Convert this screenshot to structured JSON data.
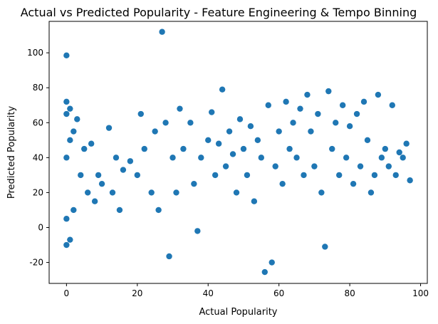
{
  "chart_data": {
    "type": "scatter",
    "title": "Actual vs Predicted Popularity - Feature Engineering & Tempo Binning",
    "xlabel": "Actual Popularity",
    "ylabel": "Predicted Popularity",
    "xlim": [
      -4.9,
      101.9
    ],
    "ylim": [
      -32,
      118
    ],
    "x_ticks": [
      0,
      20,
      40,
      60,
      80,
      100
    ],
    "y_ticks": [
      -20,
      0,
      20,
      40,
      60,
      80,
      100
    ],
    "grid": false,
    "legend": "none",
    "series": [
      {
        "color": "#1f77b4",
        "x": [
          0,
          0,
          0,
          0,
          0,
          0,
          1,
          1,
          1,
          2,
          2,
          3,
          4,
          5,
          6,
          7,
          8,
          9,
          10,
          12,
          13,
          14,
          15,
          16,
          18,
          20,
          21,
          22,
          24,
          25,
          26,
          27,
          28,
          29,
          30,
          31,
          32,
          33,
          35,
          36,
          37,
          38,
          40,
          41,
          42,
          43,
          44,
          45,
          46,
          47,
          48,
          49,
          50,
          51,
          52,
          53,
          54,
          55,
          56,
          57,
          58,
          59,
          60,
          61,
          62,
          63,
          64,
          65,
          66,
          67,
          68,
          69,
          70,
          71,
          72,
          73,
          74,
          75,
          76,
          77,
          78,
          79,
          80,
          81,
          82,
          83,
          84,
          85,
          86,
          87,
          88,
          89,
          90,
          91,
          92,
          93,
          94,
          95,
          96,
          97
        ],
        "y": [
          98.5,
          72,
          65,
          -10,
          40,
          5,
          68,
          -7,
          50,
          55,
          10,
          62,
          30,
          45,
          20,
          48,
          15,
          30,
          25,
          57,
          20,
          40,
          10,
          33,
          38,
          30,
          65,
          45,
          20,
          55,
          10,
          112,
          60,
          -16.5,
          40,
          20,
          68,
          45,
          60,
          25,
          -2,
          40,
          50,
          66,
          30,
          48,
          79,
          35,
          55,
          42,
          20,
          62,
          45,
          30,
          58,
          15,
          50,
          40,
          -25.5,
          70,
          -20,
          35,
          55,
          25,
          72,
          45,
          60,
          40,
          68,
          30,
          76,
          55,
          35,
          65,
          20,
          -11,
          78,
          45,
          60,
          30,
          70,
          40,
          58,
          25,
          65,
          35,
          72,
          50,
          20,
          30,
          76,
          40,
          45,
          35,
          70,
          30,
          43,
          40,
          48,
          27
        ]
      }
    ]
  }
}
